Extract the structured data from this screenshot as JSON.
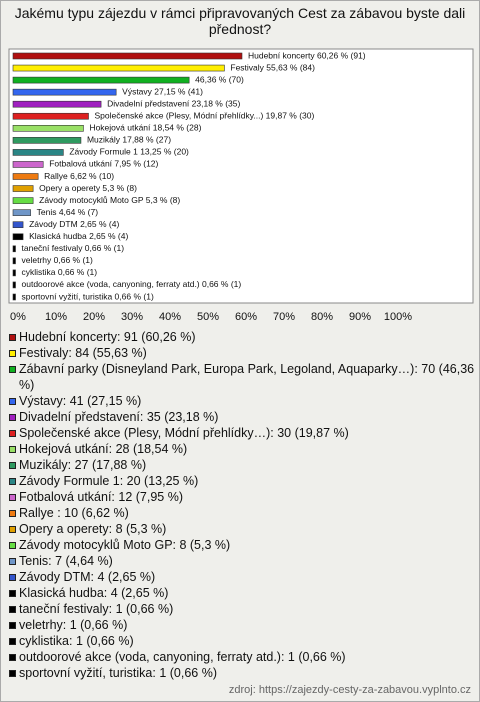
{
  "chart_data": {
    "type": "bar",
    "orientation": "horizontal",
    "title": "Jakému typu zájezdu v rámci připravovaných Cest za zábavou byste dali přednost?",
    "values": [
      60.26,
      55.63,
      46.36,
      27.15,
      23.18,
      19.87,
      18.54,
      17.88,
      13.25,
      7.95,
      6.62,
      5.3,
      5.3,
      4.64,
      2.65,
      2.65,
      0.66,
      0.66,
      0.66,
      0.66,
      0.66
    ],
    "value_labels": [
      "Hudební koncerty 60,26 % (91)",
      "Festivaly 55,63 % (84)",
      "46,36 % (70)",
      "Výstavy 27,15 % (41)",
      "Divadelní představení 23,18 % (35)",
      "Společenské akce (Plesy, Módní přehlídky...) 19,87 % (30)",
      "Hokejová utkání 18,54 % (28)",
      "Muzikály 17,88 % (27)",
      "Závody Formule 1 13,25 % (20)",
      "Fotbalová utkání 7,95 % (12)",
      "Rallye  6,62 % (10)",
      "Opery a operety 5,3 % (8)",
      "Závody motocyklů Moto GP 5,3 % (8)",
      "Tenis 4,64 % (7)",
      "Závody DTM 2,65 % (4)",
      "Klasická hudba 2,65 % (4)",
      "taneční festivaly 0,66 % (1)",
      "veletrhy 0,66 % (1)",
      "cyklistika 0,66 % (1)",
      "outdoorové akce (voda, canyoning, ferraty atd.) 0,66 % (1)",
      "sportovní vyžití, turistika 0,66 % (1)"
    ],
    "legend_labels": [
      "Hudební koncerty: 91 (60,26 %)",
      "Festivaly: 84 (55,63 %)",
      "Zábavní parky (Disneyland Park, Europa Park, Legoland, Aquaparky…): 70 (46,36 %)",
      "Výstavy: 41 (27,15 %)",
      "Divadelní představení: 35 (23,18 %)",
      "Společenské akce (Plesy, Módní přehlídky…): 30 (19,87 %)",
      "Hokejová utkání: 28 (18,54 %)",
      "Muzikály: 27 (17,88 %)",
      "Závody Formule 1: 20 (13,25 %)",
      "Fotbalová utkání: 12 (7,95 %)",
      "Rallye : 10 (6,62 %)",
      "Opery a operety: 8 (5,3 %)",
      "Závody motocyklů Moto GP: 8 (5,3 %)",
      "Tenis: 7 (4,64 %)",
      "Závody DTM: 4 (2,65 %)",
      "Klasická hudba: 4 (2,65 %)",
      "taneční festivaly: 1 (0,66 %)",
      "veletrhy: 1 (0,66 %)",
      "cyklistika: 1 (0,66 %)",
      "outdoorové akce (voda, canyoning, ferraty atd.): 1 (0,66 %)",
      "sportovní vyžití, turistika: 1 (0,66 %)"
    ],
    "colors": [
      "#b01010",
      "#ffee00",
      "#10b020",
      "#3366ee",
      "#a020c0",
      "#dd2020",
      "#99e066",
      "#2f9a60",
      "#2a8585",
      "#cc66cc",
      "#ee7a10",
      "#e0a000",
      "#66dd44",
      "#6f96c8",
      "#3355cc",
      "#000000",
      "#000000",
      "#000000",
      "#000000",
      "#000000",
      "#000000"
    ],
    "xlim": [
      0,
      100
    ],
    "xticks": [
      {
        "value": 0,
        "label": "0%"
      },
      {
        "value": 10,
        "label": "10%"
      },
      {
        "value": 20,
        "label": "20%"
      },
      {
        "value": 30,
        "label": "30%"
      },
      {
        "value": 40,
        "label": "40%"
      },
      {
        "value": 50,
        "label": "50%"
      },
      {
        "value": 60,
        "label": "60%"
      },
      {
        "value": 70,
        "label": "70%"
      },
      {
        "value": 80,
        "label": "80%"
      },
      {
        "value": 90,
        "label": "90%"
      },
      {
        "value": 100,
        "label": "100%"
      }
    ],
    "source": "zdroj: https://zajezdy-cesty-za-zabavou.vyplnto.cz"
  }
}
